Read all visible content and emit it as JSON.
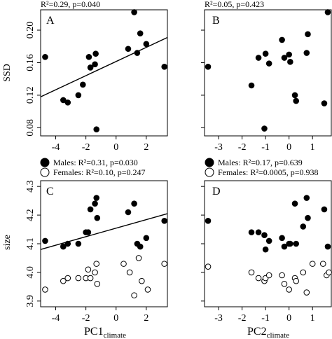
{
  "chart_data": [
    {
      "panel": "A",
      "type": "scatter",
      "stat_text": "R²=0.29, p=0.040",
      "ylabel": "SSD",
      "xlim": [
        -5.0,
        3.4
      ],
      "ylim": [
        0.07,
        0.225
      ],
      "xticks": [
        -4,
        -2,
        0,
        2
      ],
      "yticks": [
        0.08,
        0.12,
        0.16,
        0.2
      ],
      "ytick_labels": [
        "0.08",
        "0.12",
        "0.16",
        "0.20"
      ],
      "fit_line": {
        "x": [
          -5.0,
          3.4
        ],
        "y": [
          0.118,
          0.191
        ]
      },
      "series": [
        {
          "marker": "filled",
          "x": [
            -4.7,
            -3.5,
            -3.2,
            -2.5,
            -2.2,
            -1.8,
            -1.7,
            -1.4,
            -1.35,
            -1.3,
            0.8,
            1.2,
            1.4,
            1.6,
            2.0,
            3.2
          ],
          "y": [
            0.167,
            0.114,
            0.111,
            0.12,
            0.133,
            0.167,
            0.154,
            0.158,
            0.171,
            0.078,
            0.177,
            0.222,
            0.172,
            0.196,
            0.183,
            0.155
          ]
        }
      ]
    },
    {
      "panel": "B",
      "type": "scatter",
      "stat_text": "R²=0.05, p=0.423",
      "ylabel": "",
      "xlim": [
        -3.6,
        1.8
      ],
      "ylim": [
        0.07,
        0.225
      ],
      "xticks": [
        -3,
        -2,
        -1,
        0,
        1
      ],
      "yticks": [
        0.08,
        0.12,
        0.16,
        0.2
      ],
      "ytick_labels": [],
      "fit_line": null,
      "series": [
        {
          "marker": "filled",
          "x": [
            -3.45,
            -1.6,
            -1.3,
            -1.05,
            -1.0,
            -0.85,
            -0.3,
            -0.2,
            0.0,
            0.05,
            0.25,
            0.3,
            0.75,
            0.8,
            1.5,
            1.65
          ],
          "y": [
            0.155,
            0.132,
            0.166,
            0.079,
            0.171,
            0.159,
            0.188,
            0.166,
            0.17,
            0.161,
            0.12,
            0.113,
            0.172,
            0.195,
            0.11,
            0.222
          ]
        }
      ]
    },
    {
      "panel": "C",
      "type": "scatter",
      "legend": [
        {
          "marker": "filled",
          "text": "Males: R²=0.31, p=0.030"
        },
        {
          "marker": "open",
          "text": "Females: R²=0.10, p=0.247"
        }
      ],
      "ylabel": "size",
      "xlabel": "PC1",
      "xlabel_sub": "climate",
      "xlim": [
        -5.0,
        3.4
      ],
      "ylim": [
        3.88,
        4.32
      ],
      "xticks": [
        -4,
        -2,
        0,
        2
      ],
      "yticks": [
        3.9,
        4.0,
        4.1,
        4.2,
        4.3
      ],
      "ytick_labels": [
        "3.9",
        "4.0",
        "4.1",
        "4.2",
        "4.3"
      ],
      "fit_line": {
        "x": [
          -5.0,
          3.4
        ],
        "y": [
          4.08,
          4.205
        ]
      },
      "series": [
        {
          "name": "Males",
          "marker": "filled",
          "x": [
            -4.7,
            -3.5,
            -3.2,
            -2.5,
            -2.0,
            -1.85,
            -1.7,
            -1.4,
            -1.3,
            -1.25,
            0.8,
            1.2,
            1.4,
            1.6,
            2.0,
            3.2
          ],
          "y": [
            4.11,
            4.09,
            4.1,
            4.1,
            4.14,
            4.14,
            4.22,
            4.24,
            4.26,
            4.19,
            4.21,
            4.24,
            4.1,
            4.09,
            4.12,
            4.18
          ]
        },
        {
          "name": "Females",
          "marker": "open",
          "x": [
            -4.7,
            -3.5,
            -3.2,
            -2.5,
            -2.0,
            -1.85,
            -1.7,
            -1.4,
            -1.3,
            -1.25,
            0.5,
            0.9,
            1.2,
            1.5,
            1.7,
            2.1,
            3.2
          ],
          "y": [
            3.94,
            3.97,
            3.98,
            3.98,
            3.98,
            4.01,
            3.98,
            4.0,
            4.03,
            3.96,
            4.03,
            4.0,
            3.92,
            4.05,
            3.97,
            3.94,
            4.03
          ]
        }
      ]
    },
    {
      "panel": "D",
      "type": "scatter",
      "legend": [
        {
          "marker": "filled",
          "text": "Males: R²=0.17, p=0.639"
        },
        {
          "marker": "open",
          "text": "Females: R²=0.0005, p=0.938"
        }
      ],
      "ylabel": "",
      "xlabel": "PC2",
      "xlabel_sub": "climate",
      "xlim": [
        -3.6,
        1.8
      ],
      "ylim": [
        3.88,
        4.32
      ],
      "xticks": [
        -3,
        -2,
        -1,
        0,
        1
      ],
      "yticks": [
        3.9,
        4.0,
        4.1,
        4.2,
        4.3
      ],
      "ytick_labels": [],
      "fit_line": null,
      "series": [
        {
          "name": "Males",
          "marker": "filled",
          "x": [
            -3.45,
            -1.6,
            -1.3,
            -1.05,
            -1.0,
            -0.85,
            -0.3,
            -0.2,
            0.0,
            0.05,
            0.25,
            0.3,
            0.6,
            0.75,
            0.8,
            1.5,
            1.65
          ],
          "y": [
            4.18,
            4.14,
            4.14,
            4.13,
            4.08,
            4.11,
            4.12,
            4.09,
            4.1,
            4.1,
            4.24,
            4.1,
            4.16,
            4.26,
            4.19,
            4.22,
            4.09
          ]
        },
        {
          "name": "Females",
          "marker": "open",
          "x": [
            -3.45,
            -1.6,
            -1.3,
            -1.05,
            -1.0,
            -0.85,
            -0.3,
            -0.2,
            0.0,
            0.25,
            0.3,
            0.6,
            0.75,
            1.0,
            1.45,
            1.6,
            1.7
          ],
          "y": [
            4.02,
            4.0,
            3.98,
            3.97,
            3.98,
            3.99,
            3.99,
            3.96,
            3.94,
            3.98,
            3.97,
            4.0,
            3.93,
            4.03,
            4.03,
            3.99,
            4.0
          ]
        }
      ]
    }
  ]
}
